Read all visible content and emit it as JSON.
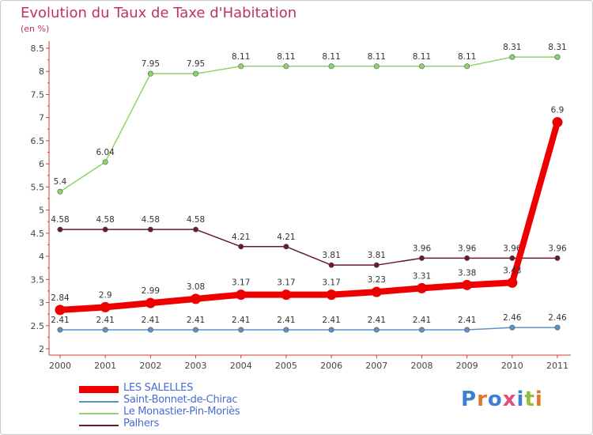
{
  "title": "Evolution du Taux de Taxe d'Habitation",
  "subtitle": "(en %)",
  "logo": {
    "text": "Proxiti",
    "letter_colors": [
      "#3d7fd1",
      "#e2762a",
      "#3d7fd1",
      "#e04f7e",
      "#3d7fd1",
      "#8fbf3a",
      "#e2762a"
    ]
  },
  "chart_data": {
    "type": "line",
    "title": "Evolution du Taux de Taxe d'Habitation",
    "ylabel": "(en %)",
    "xlabel": "",
    "x": [
      "2000",
      "2001",
      "2002",
      "2003",
      "2004",
      "2005",
      "2006",
      "2007",
      "2008",
      "2009",
      "2010",
      "2011"
    ],
    "ylim": [
      2,
      8.5
    ],
    "yticks": [
      "2",
      "2.5",
      "3",
      "3.5",
      "4",
      "4.5",
      "5",
      "5.5",
      "6",
      "6.5",
      "7",
      "7.5",
      "8",
      "8.5"
    ],
    "grid": false,
    "legend_position": "bottom-left",
    "series": [
      {
        "name": "LES SALELLES",
        "color": "#ee0000",
        "values": [
          2.84,
          2.9,
          2.99,
          3.08,
          3.17,
          3.17,
          3.17,
          3.23,
          3.31,
          3.38,
          3.43,
          6.9
        ],
        "labels": [
          "2.84",
          "2.9",
          "2.99",
          "3.08",
          "3.17",
          "3.17",
          "3.17",
          "3.23",
          "3.31",
          "3.38",
          "3.43",
          "6.9"
        ],
        "emphasis": true
      },
      {
        "name": "Saint-Bonnet-de-Chirac",
        "color": "#5b93c9",
        "values": [
          2.41,
          2.41,
          2.41,
          2.41,
          2.41,
          2.41,
          2.41,
          2.41,
          2.41,
          2.41,
          2.46,
          2.46
        ],
        "labels": [
          "2.41",
          "2.41",
          "2.41",
          "2.41",
          "2.41",
          "2.41",
          "2.41",
          "2.41",
          "2.41",
          "2.41",
          "2.46",
          "2.46"
        ]
      },
      {
        "name": "Le Monastier-Pin-Moriès",
        "color": "#8fd46a",
        "values": [
          5.4,
          6.04,
          7.95,
          7.95,
          8.11,
          8.11,
          8.11,
          8.11,
          8.11,
          8.11,
          8.31,
          8.31
        ],
        "labels": [
          "5.4",
          "6.04",
          "7.95",
          "7.95",
          "8.11",
          "8.11",
          "8.11",
          "8.11",
          "8.11",
          "8.11",
          "8.31",
          "8.31"
        ]
      },
      {
        "name": "Palhers",
        "color": "#6b1a2a",
        "values": [
          4.58,
          4.58,
          4.58,
          4.58,
          4.21,
          4.21,
          3.81,
          3.81,
          3.96,
          3.96,
          3.96,
          3.96
        ],
        "labels": [
          "4.58",
          "4.58",
          "4.58",
          "4.58",
          "4.21",
          "4.21",
          "3.81",
          "3.81",
          "3.96",
          "3.96",
          "3.96",
          "3.96"
        ]
      }
    ]
  }
}
